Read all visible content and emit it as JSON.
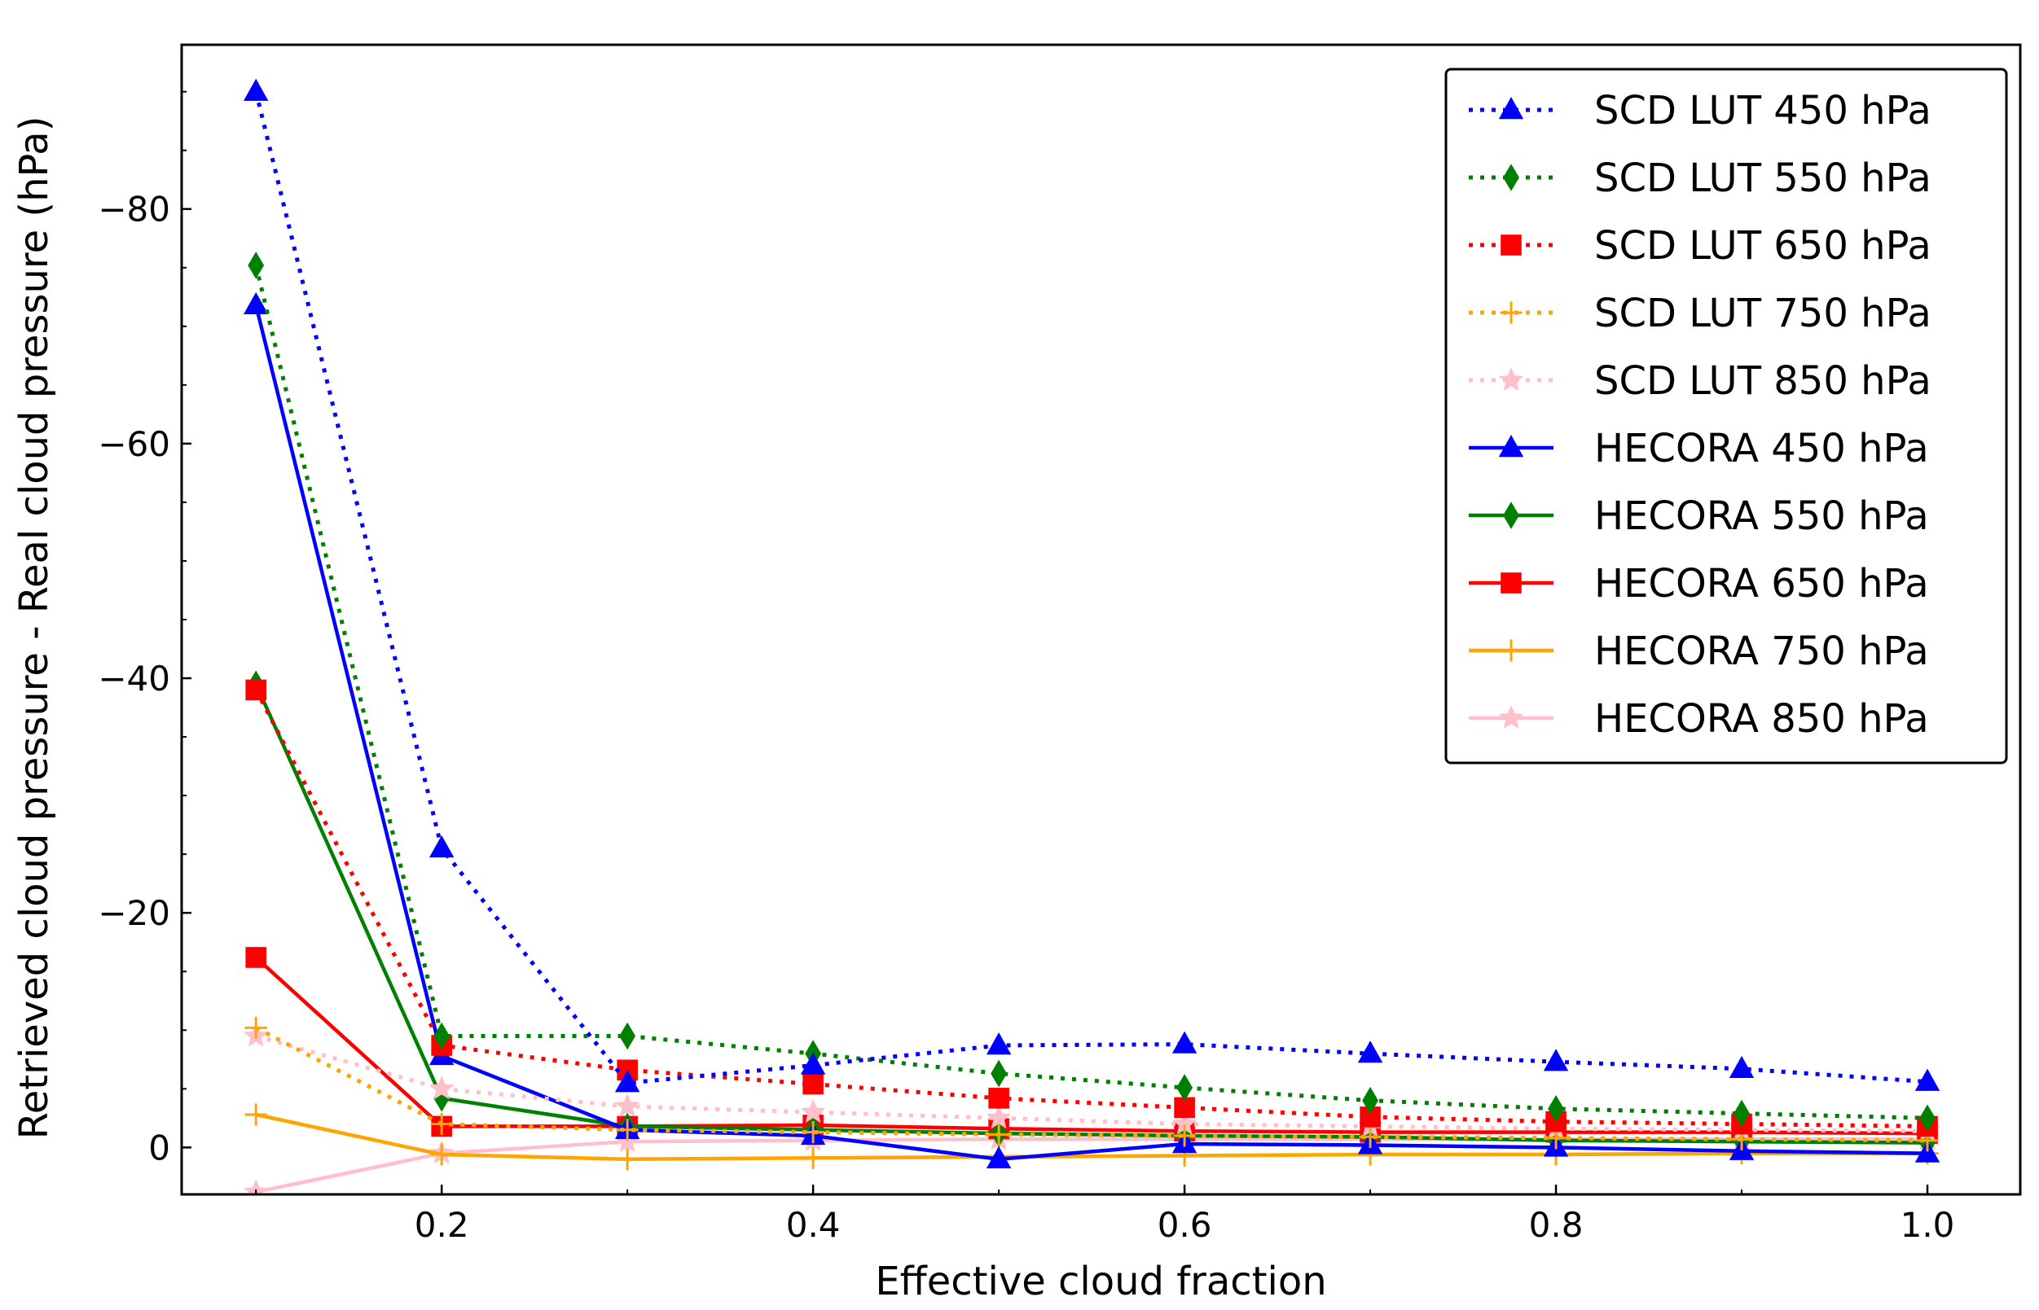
{
  "chart_data": {
    "type": "line",
    "title": "",
    "xlabel": "Effective cloud fraction",
    "ylabel": "Retrieved cloud pressure - Real cloud pressure (hPa)",
    "xlim": [
      0.06,
      1.05
    ],
    "ylim": [
      4,
      -94
    ],
    "y_axis_inverted": true,
    "grid": false,
    "legend_position": "top-right",
    "xticks": [
      0.2,
      0.4,
      0.6,
      0.8,
      1.0
    ],
    "xtick_labels": [
      "0.2",
      "0.4",
      "0.6",
      "0.8",
      "1.0"
    ],
    "yticks": [
      0,
      -20,
      -40,
      -60,
      -80
    ],
    "ytick_labels": [
      "0",
      "−20",
      "−40",
      "−60",
      "−80"
    ],
    "x": [
      0.1,
      0.2,
      0.3,
      0.4,
      0.5,
      0.6,
      0.7,
      0.8,
      0.9,
      1.0
    ],
    "series": [
      {
        "name": "SCD LUT 450 hPa",
        "color": "#0000ff",
        "linestyle": "dotted",
        "marker": "triangle",
        "values": [
          -90,
          -25.5,
          -5.5,
          -7,
          -8.7,
          -8.8,
          -8,
          -7.3,
          -6.7,
          -5.6
        ]
      },
      {
        "name": "SCD LUT 550 hPa",
        "color": "#008000",
        "linestyle": "dotted",
        "marker": "diamond",
        "values": [
          -75.2,
          -9.5,
          -9.5,
          -8,
          -6.3,
          -5.1,
          -4,
          -3.3,
          -2.9,
          -2.5
        ]
      },
      {
        "name": "SCD LUT 650 hPa",
        "color": "#ff0000",
        "linestyle": "dotted",
        "marker": "square",
        "values": [
          -39,
          -8.7,
          -6.6,
          -5.4,
          -4.2,
          -3.4,
          -2.6,
          -2.2,
          -2,
          -1.8
        ]
      },
      {
        "name": "SCD LUT 750 hPa",
        "color": "#ffa500",
        "linestyle": "dotted",
        "marker": "plus",
        "values": [
          -10.2,
          -2,
          -1.5,
          -1.3,
          -1.1,
          -1,
          -0.9,
          -0.8,
          -0.7,
          -0.6
        ]
      },
      {
        "name": "SCD LUT 850 hPa",
        "color": "#ffc0cb",
        "linestyle": "dotted",
        "marker": "star",
        "values": [
          -9.5,
          -5,
          -3.5,
          -3,
          -2.5,
          -2,
          -1.8,
          -1.6,
          -1.5,
          -1.4
        ]
      },
      {
        "name": "HECORA 450 hPa",
        "color": "#0000ff",
        "linestyle": "solid",
        "marker": "triangle",
        "values": [
          -71.8,
          -7.8,
          -1.5,
          -1,
          1,
          -0.3,
          -0.2,
          0,
          0.3,
          0.5
        ]
      },
      {
        "name": "HECORA 550 hPa",
        "color": "#008000",
        "linestyle": "solid",
        "marker": "diamond",
        "values": [
          -39.5,
          -4.2,
          -1.8,
          -1.5,
          -1.2,
          -1,
          -0.9,
          -0.6,
          -0.5,
          -0.4
        ]
      },
      {
        "name": "HECORA 650 hPa",
        "color": "#ff0000",
        "linestyle": "solid",
        "marker": "square",
        "values": [
          -16.2,
          -1.8,
          -1.8,
          -1.9,
          -1.6,
          -1.4,
          -1.3,
          -1.3,
          -1.3,
          -1.2
        ]
      },
      {
        "name": "HECORA 750 hPa",
        "color": "#ffa500",
        "linestyle": "solid",
        "marker": "plus",
        "values": [
          -2.8,
          0.6,
          1,
          0.9,
          0.8,
          0.7,
          0.6,
          0.6,
          0.5,
          0.5
        ]
      },
      {
        "name": "HECORA 850 hPa",
        "color": "#ffc0cb",
        "linestyle": "solid",
        "marker": "star",
        "values": [
          3.8,
          0.5,
          -0.5,
          -0.6,
          -0.7,
          -0.7,
          -0.7,
          -0.7,
          -0.7,
          -0.7
        ]
      }
    ]
  }
}
